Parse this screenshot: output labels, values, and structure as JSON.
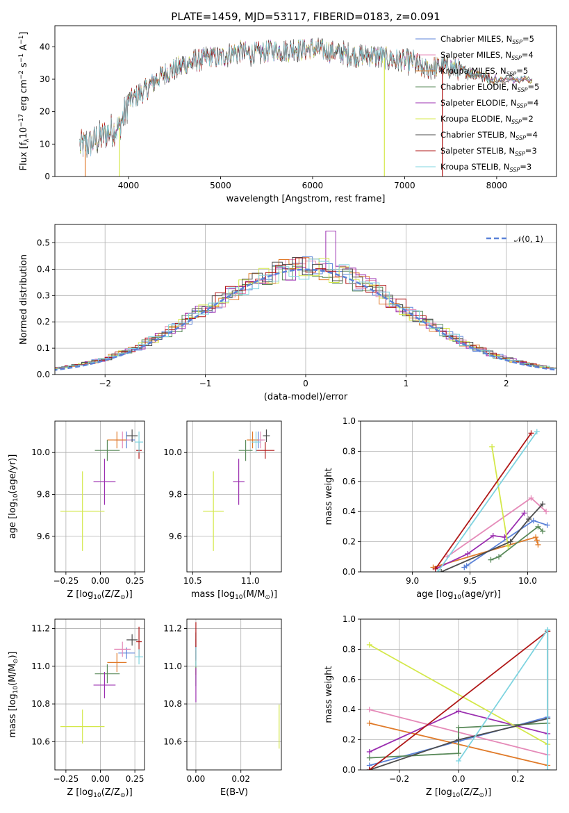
{
  "figure": {
    "title": "PLATE=1459, MJD=53117, FIBERID=0183, z=0.091"
  },
  "colors": {
    "chabrier_miles": "#5b82d8",
    "salpeter_miles": "#e58ab8",
    "kroupa_miles": "#e07b2a",
    "chabrier_elodie": "#5a8a5a",
    "salpeter_elodie": "#9b2fb0",
    "kroupa_elodie": "#d4e84a",
    "chabrier_stelib": "#4d4d4d",
    "salpeter_stelib": "#b01818",
    "kroupa_stelib": "#7fd4e0"
  },
  "chart_data": [
    {
      "id": "spectrum",
      "type": "line",
      "xlabel": "wavelength [Angstrom, rest frame]",
      "ylabel": "Flux [f$_\\lambda$10$^{-17}$ erg cm$^{-2}$ s$^{-1}$ A$^{-1}$]",
      "xlim": [
        3200,
        8650
      ],
      "ylim": [
        0,
        46.5
      ],
      "xticks": [
        4000,
        5000,
        6000,
        7000,
        8000
      ],
      "yticks": [
        0,
        10,
        20,
        30,
        40
      ],
      "grid": false,
      "legend": "top-right",
      "continuum": {
        "x": [
          3500,
          3600,
          3700,
          3800,
          3900,
          4000,
          4100,
          4200,
          4300,
          4400,
          4500,
          4600,
          4700,
          4800,
          4900,
          5000,
          5100,
          5200,
          5300,
          5400,
          5500,
          5600,
          5700,
          5800,
          5900,
          6000,
          6100,
          6200,
          6300,
          6400,
          6500,
          6600,
          6700,
          6800,
          6900,
          7000,
          7100,
          7200,
          7300,
          7400,
          7500,
          7600,
          7700,
          7800,
          7900
        ],
        "y": [
          9.5,
          10.5,
          12,
          14,
          15,
          23,
          25,
          27,
          30,
          32,
          33,
          34.5,
          35.5,
          36,
          37,
          36.5,
          38,
          38.5,
          38,
          38,
          38.5,
          39,
          38.5,
          39.5,
          39,
          39.5,
          39,
          38.5,
          38,
          37.5,
          37,
          37.5,
          37,
          36.5,
          36,
          35.5,
          35.5,
          33,
          33.5,
          34,
          33.5,
          33,
          32,
          31.5,
          30.5
        ]
      },
      "series": [
        {
          "name": "Chabrier MILES",
          "nssp": "5"
        },
        {
          "name": "Salpeter MILES",
          "nssp": "4"
        },
        {
          "name": "Kroupa MILES",
          "nssp": "5"
        },
        {
          "name": "Chabrier ELODIE",
          "nssp": "5"
        },
        {
          "name": "Salpeter ELODIE",
          "nssp": "4"
        },
        {
          "name": "Kroupa ELODIE",
          "nssp": "2"
        },
        {
          "name": "Chabrier STELIB",
          "nssp": "4"
        },
        {
          "name": "Salpeter STELIB",
          "nssp": "3"
        },
        {
          "name": "Kroupa STELIB",
          "nssp": "3"
        }
      ],
      "drops": [
        {
          "x": 3530,
          "series": 2
        },
        {
          "x": 3900,
          "series": 5
        },
        {
          "x": 6780,
          "series": 5
        },
        {
          "x": 7410,
          "series": 7
        }
      ]
    },
    {
      "id": "residuals",
      "type": "line",
      "xlabel": "(data-model)/error",
      "ylabel": "Normed distribution",
      "xlim": [
        -2.5,
        2.5
      ],
      "ylim": [
        0,
        0.57
      ],
      "xticks": [
        -2,
        -1,
        0,
        1,
        2
      ],
      "yticks": [
        0.0,
        0.1,
        0.2,
        0.3,
        0.4,
        0.5
      ],
      "grid": true,
      "legend": "top-right",
      "reference_label": "𝒩(0, 1)"
    },
    {
      "id": "age_vs_Z",
      "type": "scatter",
      "xlabel": "Z [log$_{10}$(Z/Z$_\\odot$)]",
      "ylabel": "age  [log$_{10}$(age/yr)]",
      "xlim": [
        -0.33,
        0.32
      ],
      "ylim": [
        9.43,
        10.15
      ],
      "xticks": [
        -0.25,
        0.0,
        0.25
      ],
      "yticks": [
        9.6,
        9.8,
        10.0
      ],
      "grid": true
    },
    {
      "id": "age_vs_mass",
      "type": "scatter",
      "xlabel": "mass [log$_{10}$(M/M$_\\odot$)]",
      "xlim": [
        10.45,
        11.27
      ],
      "ylim": [
        9.43,
        10.15
      ],
      "xticks": [
        10.5,
        11.0
      ],
      "yticks": [
        9.6,
        9.8,
        10.0
      ],
      "grid": true
    },
    {
      "id": "weight_vs_age",
      "type": "line",
      "xlabel": "age  [log$_{10}$(age/yr)]",
      "ylabel": "mass weight",
      "xlim": [
        8.55,
        10.25
      ],
      "ylim": [
        0,
        1.0
      ],
      "xticks": [
        9.0,
        9.5,
        10.0
      ],
      "yticks": [
        0.0,
        0.2,
        0.4,
        0.6,
        0.8,
        1.0
      ],
      "grid": true
    },
    {
      "id": "mass_vs_Z",
      "type": "scatter",
      "xlabel": "Z [log$_{10}$(Z/Z$_\\odot$)]",
      "ylabel": "mass [log$_{10}$(M/M$_\\odot$)]",
      "xlim": [
        -0.33,
        0.32
      ],
      "ylim": [
        10.45,
        11.25
      ],
      "xticks": [
        -0.25,
        0.0,
        0.25
      ],
      "yticks": [
        10.6,
        10.8,
        11.0,
        11.2
      ],
      "grid": true
    },
    {
      "id": "mass_vs_ebv",
      "type": "scatter",
      "xlabel": "E(B-V)",
      "xlim": [
        -0.004,
        0.038
      ],
      "ylim": [
        10.45,
        11.25
      ],
      "xticks": [
        0.0,
        0.02
      ],
      "yticks": [
        10.6,
        10.8,
        11.0,
        11.2
      ],
      "grid": true
    },
    {
      "id": "weight_vs_Z",
      "type": "line",
      "xlabel": "Z [log$_{10}$(Z/Z$_\\odot$)]",
      "ylabel": "mass weight",
      "xlim": [
        -0.33,
        0.33
      ],
      "ylim": [
        0,
        1.0
      ],
      "xticks": [
        -0.2,
        0.0,
        0.2
      ],
      "yticks": [
        0.0,
        0.2,
        0.4,
        0.6,
        0.8,
        1.0
      ],
      "grid": true
    }
  ],
  "points": {
    "age": [
      10.06,
      10.06,
      10.06,
      10.01,
      9.86,
      9.72,
      10.08,
      10.01,
      10.05
    ],
    "age_err": [
      0.04,
      0.04,
      0.04,
      0.05,
      0.11,
      0.19,
      0.03,
      0.04,
      0.05
    ],
    "Z": [
      0.19,
      0.16,
      0.12,
      0.05,
      0.03,
      -0.13,
      0.23,
      0.28,
      0.28
    ],
    "Z_err": [
      0.06,
      0.06,
      0.07,
      0.09,
      0.08,
      0.16,
      0.04,
      0.02,
      0.03
    ],
    "mass": [
      11.07,
      11.09,
      11.02,
      10.96,
      10.9,
      10.68,
      11.14,
      11.13,
      11.05
    ],
    "mass_err": [
      0.03,
      0.04,
      0.05,
      0.05,
      0.07,
      0.09,
      0.03,
      0.08,
      0.04
    ],
    "mass_xerr_age_panel": [
      0.04,
      0.04,
      0.05,
      0.06,
      0.05,
      0.09,
      0.03,
      0.08,
      0.04
    ],
    "ebv": [
      0.0,
      0.0,
      0.0,
      0.0,
      0.0,
      0.037,
      0.0,
      0.0,
      0.0
    ]
  },
  "weights_age": [
    [
      [
        9.45,
        0.03
      ],
      [
        9.47,
        0.04
      ],
      [
        10.05,
        0.34
      ],
      [
        10.17,
        0.31
      ]
    ],
    [
      [
        9.3,
        0.1
      ],
      [
        10.03,
        0.49
      ],
      [
        10.16,
        0.4
      ]
    ],
    [
      [
        9.18,
        0.03
      ],
      [
        10.07,
        0.23
      ],
      [
        10.08,
        0.21
      ],
      [
        10.09,
        0.18
      ]
    ],
    [
      [
        9.68,
        0.08
      ],
      [
        9.75,
        0.1
      ],
      [
        10.09,
        0.3
      ],
      [
        10.13,
        0.27
      ]
    ],
    [
      [
        9.2,
        0.02
      ],
      [
        9.48,
        0.12
      ],
      [
        9.7,
        0.24
      ],
      [
        9.8,
        0.23
      ],
      [
        9.97,
        0.39
      ]
    ],
    [
      [
        9.69,
        0.83
      ],
      [
        9.83,
        0.17
      ]
    ],
    [
      [
        9.25,
        0.0
      ],
      [
        9.85,
        0.2
      ],
      [
        10.01,
        0.35
      ],
      [
        10.13,
        0.45
      ]
    ],
    [
      [
        9.2,
        0.02
      ],
      [
        10.03,
        0.92
      ]
    ],
    [
      [
        9.22,
        0.0
      ],
      [
        10.08,
        0.93
      ]
    ]
  ],
  "weights_Z": [
    [
      [
        -0.3,
        0.03
      ],
      [
        0.0,
        0.19
      ],
      [
        0.3,
        0.35
      ]
    ],
    [
      [
        -0.3,
        0.4
      ],
      [
        0.3,
        0.1
      ]
    ],
    [
      [
        -0.3,
        0.31
      ],
      [
        0.3,
        0.03
      ]
    ],
    [
      [
        -0.3,
        0.08
      ],
      [
        0.0,
        0.11
      ],
      [
        0.0,
        0.28
      ],
      [
        0.3,
        0.31
      ]
    ],
    [
      [
        -0.3,
        0.12
      ],
      [
        0.0,
        0.39
      ],
      [
        0.3,
        0.24
      ]
    ],
    [
      [
        -0.3,
        0.83
      ],
      [
        0.3,
        0.17
      ]
    ],
    [
      [
        -0.3,
        0.0
      ],
      [
        0.0,
        0.2
      ],
      [
        0.3,
        0.34
      ],
      [
        0.3,
        0.92
      ]
    ],
    [
      [
        -0.3,
        0.0
      ],
      [
        0.3,
        0.92
      ]
    ],
    [
      [
        0.0,
        0.06
      ],
      [
        0.3,
        0.93
      ],
      [
        0.3,
        0.0
      ]
    ]
  ]
}
